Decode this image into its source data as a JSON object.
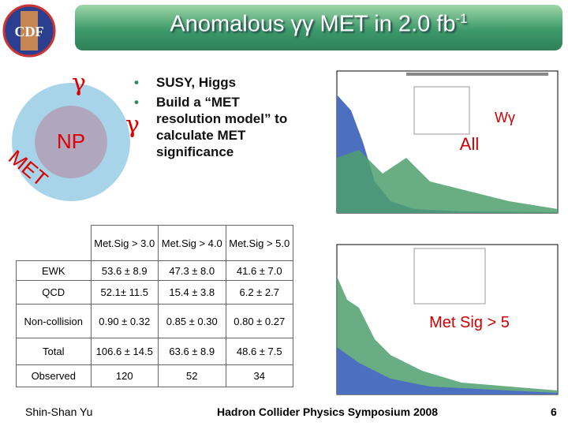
{
  "header": {
    "logo": "CDF",
    "title": "Anomalous γγ MET in 2.0 fb",
    "title_superscript": "-1"
  },
  "diagram": {
    "photon_1": "γ",
    "photon_2": "γ",
    "core": "NP",
    "missing": "MET"
  },
  "bullets": [
    "SUSY, Higgs",
    "Build a “MET resolution model” to calculate MET significance"
  ],
  "table": {
    "columns": [
      "Met.Sig > 3.0",
      "Met.Sig > 4.0",
      "Met.Sig > 5.0"
    ],
    "rows": [
      [
        "EWK",
        "53.6 ± 8.9",
        "47.3 ± 8.0",
        "41.6 ± 7.0"
      ],
      [
        "QCD",
        "52.1± 11.5",
        "15.4 ± 3.8",
        "6.2 ± 2.7"
      ],
      [
        "Non-collision",
        "0.90 ± 0.32",
        "0.85 ± 0.30",
        "0.80 ± 0.27"
      ],
      [
        "Total",
        "106.6 ± 14.5",
        "63.6 ± 8.9",
        "48.6 ± 7.5"
      ],
      [
        "Observed",
        "120",
        "52",
        "34"
      ]
    ]
  },
  "plots": {
    "top_label_1": "Wγ",
    "top_label_2": "All",
    "bottom_label": "Met Sig > 5"
  },
  "footer": {
    "author": "Shin-Shan Yu",
    "conference": "Hadron Collider Physics Symposium 2008",
    "page": "6"
  }
}
